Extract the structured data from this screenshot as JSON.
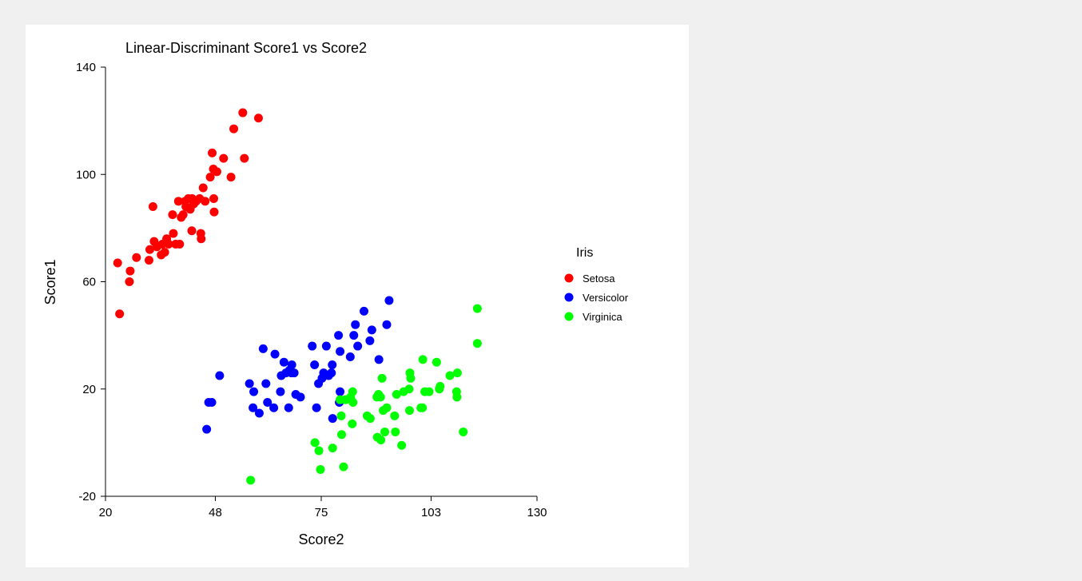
{
  "chart_data": {
    "type": "scatter",
    "title": "Linear-Discriminant Score1 vs Score2",
    "xlabel": "Score2",
    "ylabel": "Score1",
    "xlim": [
      20,
      130
    ],
    "ylim": [
      -20,
      140
    ],
    "xticks": [
      20,
      48,
      75,
      103,
      130
    ],
    "yticks": [
      -20,
      20,
      60,
      100,
      140
    ],
    "grid": false,
    "legend": {
      "title": "Iris",
      "position": "right"
    },
    "series": [
      {
        "name": "Setosa",
        "color": "#ff0000",
        "points": [
          [
            23.1,
            67
          ],
          [
            23.6,
            48
          ],
          [
            26.1,
            60
          ],
          [
            26.3,
            64
          ],
          [
            27.9,
            69
          ],
          [
            31.1,
            68
          ],
          [
            31.3,
            72
          ],
          [
            32.1,
            88
          ],
          [
            32.4,
            75
          ],
          [
            33.1,
            73
          ],
          [
            34.2,
            70
          ],
          [
            34.5,
            74
          ],
          [
            35.1,
            71
          ],
          [
            35.6,
            76
          ],
          [
            36.1,
            74
          ],
          [
            37.1,
            85
          ],
          [
            37.3,
            78
          ],
          [
            37.9,
            74
          ],
          [
            38.6,
            90
          ],
          [
            38.9,
            74
          ],
          [
            39.3,
            84
          ],
          [
            39.8,
            85
          ],
          [
            40.3,
            90
          ],
          [
            40.5,
            88
          ],
          [
            41.1,
            91
          ],
          [
            41.6,
            87
          ],
          [
            42.0,
            79
          ],
          [
            42.1,
            91
          ],
          [
            42.5,
            89
          ],
          [
            43.1,
            90
          ],
          [
            44.0,
            91
          ],
          [
            44.3,
            78
          ],
          [
            44.4,
            76
          ],
          [
            44.9,
            95
          ],
          [
            45.4,
            90
          ],
          [
            46.7,
            99
          ],
          [
            47.2,
            108
          ],
          [
            47.5,
            102
          ],
          [
            47.6,
            91
          ],
          [
            47.7,
            86
          ],
          [
            48.4,
            101
          ],
          [
            50.1,
            106
          ],
          [
            52.0,
            99
          ],
          [
            52.7,
            117
          ],
          [
            55.0,
            123
          ],
          [
            55.4,
            106
          ],
          [
            59.0,
            121
          ]
        ]
      },
      {
        "name": "Versicolor",
        "color": "#0000ff",
        "points": [
          [
            45.8,
            5
          ],
          [
            46.3,
            15
          ],
          [
            47.1,
            15
          ],
          [
            49.1,
            25
          ],
          [
            56.7,
            22
          ],
          [
            57.6,
            13
          ],
          [
            57.8,
            19
          ],
          [
            59.2,
            11
          ],
          [
            60.2,
            35
          ],
          [
            60.9,
            22
          ],
          [
            61.3,
            15
          ],
          [
            62.9,
            13
          ],
          [
            63.2,
            33
          ],
          [
            64.6,
            19
          ],
          [
            64.8,
            25
          ],
          [
            65.5,
            30
          ],
          [
            66.0,
            26
          ],
          [
            66.7,
            13
          ],
          [
            66.9,
            27
          ],
          [
            67.4,
            26
          ],
          [
            67.5,
            29
          ],
          [
            68.1,
            26
          ],
          [
            68.5,
            18
          ],
          [
            69.7,
            17
          ],
          [
            72.7,
            36
          ],
          [
            73.3,
            29
          ],
          [
            73.8,
            13
          ],
          [
            74.3,
            22
          ],
          [
            75.2,
            24
          ],
          [
            75.6,
            26
          ],
          [
            76.3,
            36
          ],
          [
            76.9,
            25
          ],
          [
            77.6,
            26
          ],
          [
            77.8,
            29
          ],
          [
            77.9,
            9
          ],
          [
            79.4,
            40
          ],
          [
            79.6,
            15
          ],
          [
            79.8,
            34
          ],
          [
            79.8,
            19
          ],
          [
            82.4,
            32
          ],
          [
            83.3,
            40
          ],
          [
            83.7,
            44
          ],
          [
            84.3,
            36
          ],
          [
            85.9,
            49
          ],
          [
            87.4,
            38
          ],
          [
            87.9,
            42
          ],
          [
            89.7,
            31
          ],
          [
            91.7,
            44
          ],
          [
            92.3,
            53
          ]
        ]
      },
      {
        "name": "Virginica",
        "color": "#00ff00",
        "points": [
          [
            57.0,
            -14
          ],
          [
            73.4,
            0
          ],
          [
            74.4,
            -3
          ],
          [
            74.8,
            -10
          ],
          [
            77.9,
            -2
          ],
          [
            79.8,
            16
          ],
          [
            80.1,
            10
          ],
          [
            80.2,
            3
          ],
          [
            80.7,
            -9
          ],
          [
            81.2,
            16
          ],
          [
            82.5,
            17
          ],
          [
            82.9,
            7
          ],
          [
            83.0,
            19
          ],
          [
            83.1,
            15
          ],
          [
            86.7,
            10
          ],
          [
            87.5,
            9
          ],
          [
            89.2,
            17
          ],
          [
            89.3,
            2
          ],
          [
            89.6,
            18
          ],
          [
            90.1,
            17
          ],
          [
            90.2,
            1
          ],
          [
            90.5,
            24
          ],
          [
            90.8,
            12
          ],
          [
            91.2,
            4
          ],
          [
            91.7,
            13
          ],
          [
            93.7,
            10
          ],
          [
            93.9,
            4
          ],
          [
            94.2,
            18
          ],
          [
            95.5,
            -1
          ],
          [
            96.0,
            19
          ],
          [
            97.4,
            20
          ],
          [
            97.5,
            12
          ],
          [
            97.6,
            26
          ],
          [
            97.8,
            24
          ],
          [
            100.4,
            13
          ],
          [
            100.8,
            13
          ],
          [
            100.9,
            31
          ],
          [
            101.4,
            19
          ],
          [
            102.5,
            19
          ],
          [
            104.4,
            30
          ],
          [
            105.1,
            20
          ],
          [
            105.3,
            21
          ],
          [
            107.8,
            25
          ],
          [
            109.5,
            19
          ],
          [
            109.6,
            17
          ],
          [
            109.7,
            26
          ],
          [
            111.2,
            4
          ],
          [
            114.8,
            50
          ],
          [
            114.8,
            37
          ]
        ]
      }
    ]
  }
}
